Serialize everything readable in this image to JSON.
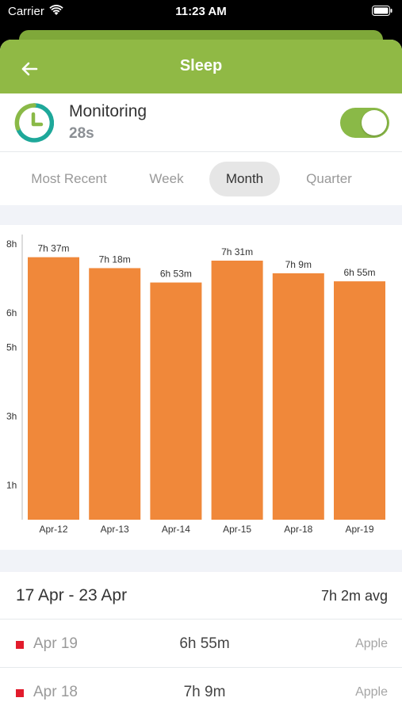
{
  "status_bar": {
    "carrier": "Carrier",
    "time": "11:23 AM"
  },
  "nav": {
    "title": "Sleep",
    "back_icon": "arrow-left-icon"
  },
  "monitoring": {
    "label": "Monitoring",
    "value": "28s",
    "toggle_on": true,
    "icon": "clock-icon"
  },
  "tabs": [
    {
      "label": "Most Recent",
      "active": false
    },
    {
      "label": "Week",
      "active": false
    },
    {
      "label": "Month",
      "active": true
    },
    {
      "label": "Quarter",
      "active": false
    }
  ],
  "colors": {
    "accent": "#90b945",
    "bar": "#f0883a",
    "marker": "#e21b2c",
    "toggle": "#8ab947"
  },
  "chart_data": {
    "type": "bar",
    "categories": [
      "Apr-12",
      "Apr-13",
      "Apr-14",
      "Apr-15",
      "Apr-18",
      "Apr-19"
    ],
    "values": [
      7.617,
      7.3,
      6.883,
      7.517,
      7.15,
      6.917
    ],
    "data_labels": [
      "7h 37m",
      "7h 18m",
      "6h 53m",
      "7h 31m",
      "7h 9m",
      "6h 55m"
    ],
    "y_ticks": [
      {
        "label": "1h",
        "value": 1
      },
      {
        "label": "3h",
        "value": 3
      },
      {
        "label": "5h",
        "value": 5
      },
      {
        "label": "6h",
        "value": 6
      },
      {
        "label": "8h",
        "value": 8
      }
    ],
    "ylim": [
      0,
      8
    ],
    "grid": false
  },
  "summary": {
    "range": "17 Apr - 23 Apr",
    "avg": "7h 2m avg"
  },
  "entries": [
    {
      "date": "Apr 19",
      "value": "6h 55m",
      "source": "Apple"
    },
    {
      "date": "Apr 18",
      "value": "7h 9m",
      "source": "Apple"
    }
  ]
}
